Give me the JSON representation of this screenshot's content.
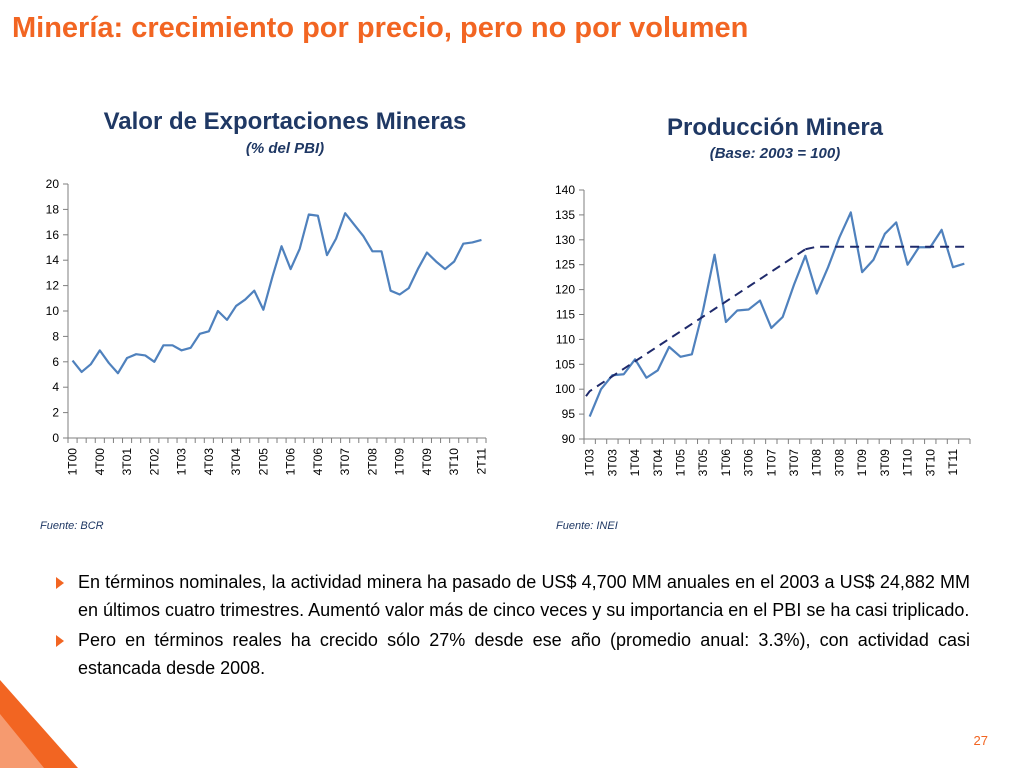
{
  "title": "Minería: crecimiento por precio, pero no por volumen",
  "colors": {
    "accent": "#f26522",
    "navy": "#1f3864",
    "line": "#4f81bd",
    "trend": "#1f2a6b"
  },
  "charts": {
    "left": {
      "title": "Valor de Exportaciones Mineras",
      "subtitle": "(% del PBI)",
      "source": "Fuente: BCR"
    },
    "right": {
      "title": "Producción Minera",
      "subtitle": "(Base: 2003 = 100)",
      "source": "Fuente: INEI"
    }
  },
  "chart_data": [
    {
      "type": "line",
      "title": "Valor de Exportaciones Mineras",
      "subtitle": "(% del PBI)",
      "ylim": [
        0,
        20
      ],
      "yticks": [
        0,
        2,
        4,
        6,
        8,
        10,
        12,
        14,
        16,
        18,
        20
      ],
      "xtick_labels": [
        "1T00",
        "4T00",
        "3T01",
        "2T02",
        "1T03",
        "4T03",
        "3T04",
        "2T05",
        "1T06",
        "4T06",
        "3T07",
        "2T08",
        "1T09",
        "4T09",
        "3T10",
        "2T11"
      ],
      "xtick_every": 3,
      "x": [
        "1T00",
        "2T00",
        "3T00",
        "4T00",
        "1T01",
        "2T01",
        "3T01",
        "4T01",
        "1T02",
        "2T02",
        "3T02",
        "4T02",
        "1T03",
        "2T03",
        "3T03",
        "4T03",
        "1T04",
        "2T04",
        "3T04",
        "4T04",
        "1T05",
        "2T05",
        "3T05",
        "4T05",
        "1T06",
        "2T06",
        "3T06",
        "4T06",
        "1T07",
        "2T07",
        "3T07",
        "4T07",
        "1T08",
        "2T08",
        "3T08",
        "4T08",
        "1T09",
        "2T09",
        "3T09",
        "4T09",
        "1T10",
        "2T10",
        "3T10",
        "4T10",
        "1T11",
        "2T11"
      ],
      "series": [
        {
          "values": [
            6.1,
            5.2,
            5.8,
            6.9,
            5.9,
            5.1,
            6.3,
            6.6,
            6.5,
            6.0,
            7.3,
            7.3,
            6.9,
            7.1,
            8.2,
            8.4,
            10.0,
            9.3,
            10.4,
            10.9,
            11.6,
            10.1,
            12.7,
            15.1,
            13.3,
            14.9,
            17.6,
            17.5,
            14.4,
            15.7,
            17.7,
            16.8,
            15.9,
            14.7,
            14.7,
            11.6,
            11.3,
            11.8,
            13.3,
            14.6,
            13.9,
            13.3,
            13.9,
            15.3,
            15.4,
            15.6
          ]
        }
      ]
    },
    {
      "type": "line",
      "title": "Producción Minera",
      "subtitle": "(Base: 2003 = 100)",
      "ylim": [
        90,
        140
      ],
      "yticks": [
        90,
        95,
        100,
        105,
        110,
        115,
        120,
        125,
        130,
        135,
        140
      ],
      "xtick_labels": [
        "1T03",
        "3T03",
        "1T04",
        "3T04",
        "1T05",
        "3T05",
        "1T06",
        "3T06",
        "1T07",
        "3T07",
        "1T08",
        "3T08",
        "1T09",
        "3T09",
        "1T10",
        "3T10",
        "1T11"
      ],
      "xtick_every": 2,
      "x": [
        "1T03",
        "2T03",
        "3T03",
        "4T03",
        "1T04",
        "2T04",
        "3T04",
        "4T04",
        "1T05",
        "2T05",
        "3T05",
        "4T05",
        "1T06",
        "2T06",
        "3T06",
        "4T06",
        "1T07",
        "2T07",
        "3T07",
        "4T07",
        "1T08",
        "2T08",
        "3T08",
        "4T08",
        "1T09",
        "2T09",
        "3T09",
        "4T09",
        "1T10",
        "2T10",
        "3T10",
        "4T10",
        "1T11",
        "2T11"
      ],
      "series": [
        {
          "style": "solid",
          "values": [
            94.5,
            100.0,
            102.8,
            103.0,
            106.0,
            102.3,
            103.8,
            108.5,
            106.5,
            107.0,
            116.0,
            127.0,
            113.5,
            115.8,
            116.0,
            117.8,
            112.3,
            114.5,
            121.0,
            126.8,
            119.2,
            124.5,
            130.5,
            135.5,
            123.5,
            126.0,
            131.2,
            133.5,
            125.0,
            128.5,
            128.5,
            132.0,
            124.5,
            125.2
          ]
        },
        {
          "style": "dashed",
          "values": [
            99.6,
            101.1,
            102.6,
            104.1,
            105.6,
            107.1,
            108.6,
            110.1,
            111.6,
            113.1,
            114.6,
            116.1,
            117.6,
            119.1,
            120.6,
            122.1,
            123.6,
            125.1,
            126.6,
            128.1,
            128.6,
            128.6,
            128.6,
            128.6,
            128.6,
            128.6,
            128.6,
            128.6,
            128.6,
            128.6,
            128.6,
            128.6,
            128.6,
            128.6
          ],
          "x_start_index": 0,
          "x_count": 34,
          "note_segment": [
            0,
            19
          ]
        }
      ]
    }
  ],
  "bullets": [
    "En términos nominales, la actividad minera ha pasado de US$ 4,700 MM anuales en el 2003 a US$ 24,882 MM en últimos cuatro trimestres. Aumentó valor más de cinco veces y su importancia en el PBI se ha casi triplicado.",
    "Pero en términos reales ha crecido sólo 27% desde ese año (promedio anual: 3.3%), con actividad casi estancada desde 2008."
  ],
  "page_number": "27"
}
